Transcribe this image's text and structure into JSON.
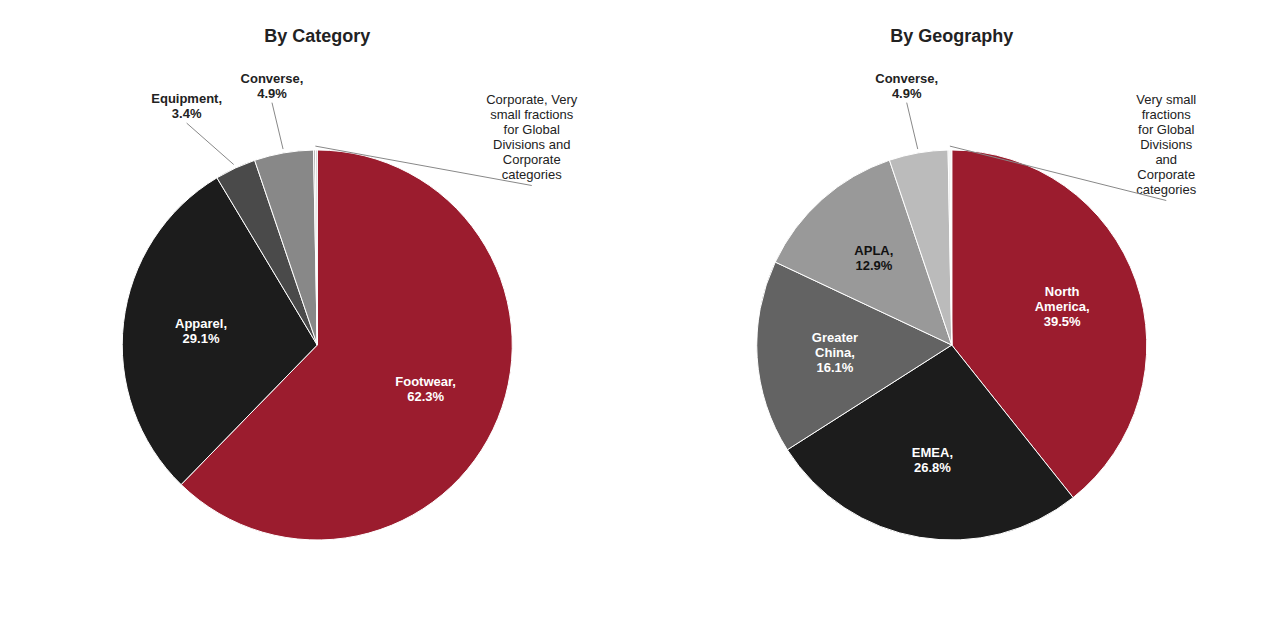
{
  "chart_data": [
    {
      "type": "pie",
      "title": "By Category",
      "values": [
        62.3,
        29.1,
        3.4,
        4.9,
        0.15,
        0.15
      ],
      "value_labels": [
        "Footwear,\n62.3%",
        "Apparel,\n29.1%",
        "Equipment,\n3.4%",
        "Converse,\n4.9%",
        null,
        null
      ],
      "data_labels": true,
      "colors": [
        "#9B1C2E",
        "#1C1C1C",
        "#4A4A4A",
        "#888888",
        "#AAAAAA",
        "#CCCCCC"
      ],
      "annotation": "Corporate, Very\nsmall fractions\nfor Global\nDivisions and\nCorporate\ncategories"
    },
    {
      "type": "pie",
      "title": "By Geography",
      "values": [
        39.5,
        26.8,
        16.1,
        12.9,
        4.9,
        0.15,
        0.15
      ],
      "value_labels": [
        "North\nAmerica,\n39.5%",
        "EMEA,\n26.8%",
        "Greater\nChina,\n16.1%",
        "APLA,\n12.9%",
        "Converse,\n4.9%",
        null,
        null
      ],
      "data_labels": true,
      "colors": [
        "#9B1C2E",
        "#1C1C1C",
        "#636363",
        "#999999",
        "#BBBBBB",
        "#DDDDDD",
        "#EEEEEE"
      ],
      "annotation": "Very small\nfractions\nfor Global\nDivisions\nand\nCorporate\ncategories"
    }
  ]
}
